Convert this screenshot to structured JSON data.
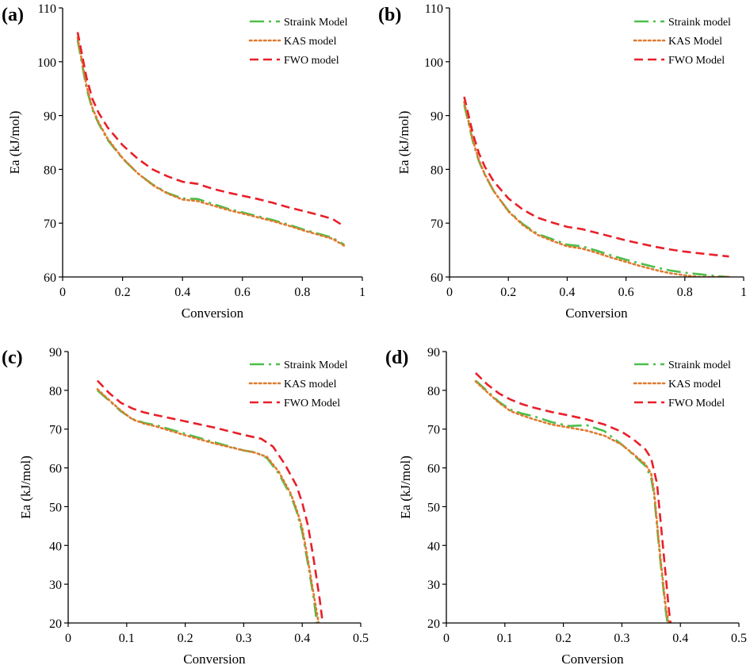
{
  "colors": {
    "strainks": "#4bbf4b",
    "kas": "#e07a2e",
    "fwo": "#e8202a",
    "axis": "#000000"
  },
  "chart_data": [
    {
      "panel_label": "(a)",
      "type": "line",
      "xlabel": "Conversion",
      "ylabel": "Ea (kJ/mol)",
      "xlim": [
        0,
        1
      ],
      "ylim": [
        60,
        110
      ],
      "xticks": [
        0,
        0.2,
        0.4,
        0.6,
        0.8,
        1
      ],
      "xtick_labels": [
        "0",
        "0.2",
        "0.4",
        "0.6",
        "0.8",
        "1"
      ],
      "yticks": [
        60,
        70,
        80,
        90,
        100,
        110
      ],
      "ytick_labels": [
        "60",
        "70",
        "80",
        "90",
        "100",
        "110"
      ],
      "legend_position": "top-right",
      "series": [
        {
          "name": "Straink Model",
          "style": "dashdot",
          "color_key": "strainks",
          "x": [
            0.05,
            0.08,
            0.1,
            0.12,
            0.15,
            0.2,
            0.25,
            0.3,
            0.35,
            0.4,
            0.45,
            0.5,
            0.55,
            0.6,
            0.65,
            0.7,
            0.75,
            0.8,
            0.85,
            0.9,
            0.94
          ],
          "y": [
            104,
            95,
            91,
            88.5,
            85.5,
            82,
            79.3,
            77.2,
            75.6,
            74.6,
            74.5,
            73.6,
            72.7,
            72,
            71.3,
            70.6,
            69.8,
            68.9,
            68.1,
            67.3,
            66
          ]
        },
        {
          "name": "KAS model",
          "style": "dotted",
          "color_key": "kas",
          "x": [
            0.05,
            0.08,
            0.1,
            0.12,
            0.15,
            0.2,
            0.25,
            0.3,
            0.35,
            0.4,
            0.45,
            0.5,
            0.55,
            0.6,
            0.65,
            0.7,
            0.75,
            0.8,
            0.85,
            0.9,
            0.94
          ],
          "y": [
            104.5,
            95.5,
            91.3,
            88.7,
            85.7,
            82.1,
            79.3,
            77.1,
            75.5,
            74.4,
            74.1,
            73.3,
            72.5,
            71.8,
            71.1,
            70.4,
            69.6,
            68.7,
            67.9,
            67.1,
            65.8
          ]
        },
        {
          "name": "FWO model",
          "style": "dashed",
          "color_key": "fwo",
          "x": [
            0.05,
            0.08,
            0.1,
            0.12,
            0.15,
            0.2,
            0.25,
            0.3,
            0.35,
            0.4,
            0.45,
            0.5,
            0.55,
            0.6,
            0.65,
            0.7,
            0.75,
            0.8,
            0.85,
            0.9,
            0.94
          ],
          "y": [
            105.5,
            97,
            93,
            90.5,
            87.8,
            84.5,
            82,
            80,
            78.7,
            77.7,
            77.3,
            76.4,
            75.7,
            75.1,
            74.5,
            73.8,
            73,
            72.3,
            71.6,
            70.8,
            69.4
          ]
        }
      ]
    },
    {
      "panel_label": "(b)",
      "type": "line",
      "xlabel": "Conversion",
      "ylabel": "Ea (kJ/mol)",
      "xlim": [
        0,
        1
      ],
      "ylim": [
        60,
        110
      ],
      "xticks": [
        0,
        0.2,
        0.4,
        0.6,
        0.8,
        1
      ],
      "xtick_labels": [
        "0",
        "0.2",
        "0.4",
        "0.6",
        "0.8",
        "1"
      ],
      "yticks": [
        60,
        70,
        80,
        90,
        100,
        110
      ],
      "ytick_labels": [
        "60",
        "70",
        "80",
        "90",
        "100",
        "110"
      ],
      "legend_position": "top-right",
      "series": [
        {
          "name": "Straink model",
          "style": "dashdot",
          "color_key": "strainks",
          "x": [
            0.05,
            0.08,
            0.1,
            0.12,
            0.15,
            0.2,
            0.25,
            0.3,
            0.35,
            0.4,
            0.45,
            0.5,
            0.55,
            0.6,
            0.65,
            0.7,
            0.75,
            0.8,
            0.85,
            0.9,
            0.95
          ],
          "y": [
            92,
            85,
            81.5,
            79,
            76,
            72.3,
            69.8,
            68,
            67,
            66,
            65.7,
            64.9,
            64,
            63.2,
            62.5,
            61.8,
            61.2,
            60.8,
            60.5,
            60.2,
            60
          ]
        },
        {
          "name": "KAS Model",
          "style": "dotted",
          "color_key": "kas",
          "x": [
            0.05,
            0.08,
            0.1,
            0.12,
            0.15,
            0.2,
            0.25,
            0.3,
            0.35,
            0.4,
            0.45,
            0.5,
            0.55,
            0.6,
            0.65,
            0.7,
            0.75,
            0.8,
            0.85,
            0.9,
            0.95
          ],
          "y": [
            92.5,
            85.3,
            81.7,
            79.1,
            76,
            72.2,
            69.6,
            67.8,
            66.7,
            65.7,
            65.3,
            64.5,
            63.6,
            62.8,
            62,
            61.3,
            60.7,
            60.3,
            60,
            60,
            60
          ]
        },
        {
          "name": "FWO Model",
          "style": "dashed",
          "color_key": "fwo",
          "x": [
            0.05,
            0.08,
            0.1,
            0.12,
            0.15,
            0.2,
            0.25,
            0.3,
            0.35,
            0.4,
            0.45,
            0.5,
            0.55,
            0.6,
            0.65,
            0.7,
            0.75,
            0.8,
            0.85,
            0.9,
            0.95
          ],
          "y": [
            93.5,
            86.5,
            83,
            80.5,
            77.8,
            74.6,
            72.5,
            71,
            70.1,
            69.3,
            68.9,
            68.2,
            67.5,
            66.8,
            66.2,
            65.6,
            65.1,
            64.7,
            64.4,
            64.1,
            63.8
          ]
        }
      ]
    },
    {
      "panel_label": "(c)",
      "type": "line",
      "xlabel": "Conversion",
      "ylabel": "Ea (kJ/mol)",
      "xlim": [
        0,
        0.5
      ],
      "ylim": [
        20,
        90
      ],
      "xticks": [
        0,
        0.1,
        0.2,
        0.3,
        0.4,
        0.5
      ],
      "xtick_labels": [
        "0",
        "0.1",
        "0.2",
        "0.3",
        "0.4",
        "0.5"
      ],
      "yticks": [
        20,
        30,
        40,
        50,
        60,
        70,
        80,
        90
      ],
      "ytick_labels": [
        "20",
        "30",
        "40",
        "50",
        "60",
        "70",
        "80",
        "90"
      ],
      "legend_position": "top-right",
      "series": [
        {
          "name": "Straink Model",
          "style": "dashdot",
          "color_key": "strainks",
          "x": [
            0.05,
            0.07,
            0.09,
            0.11,
            0.13,
            0.15,
            0.2,
            0.25,
            0.3,
            0.32,
            0.34,
            0.36,
            0.38,
            0.39,
            0.4,
            0.41,
            0.42,
            0.425
          ],
          "y": [
            80,
            77.3,
            74.6,
            72.6,
            71.6,
            71,
            68.8,
            66.6,
            64.5,
            64,
            62.5,
            58.5,
            53,
            49,
            43.5,
            35,
            26,
            20
          ]
        },
        {
          "name": "KAS model",
          "style": "dotted",
          "color_key": "kas",
          "x": [
            0.05,
            0.07,
            0.09,
            0.11,
            0.13,
            0.15,
            0.2,
            0.25,
            0.3,
            0.32,
            0.34,
            0.36,
            0.38,
            0.39,
            0.4,
            0.41,
            0.42,
            0.428
          ],
          "y": [
            80.3,
            77.5,
            74.8,
            72.5,
            71.4,
            70.7,
            68.4,
            66.3,
            64.5,
            63.9,
            62.8,
            59,
            53.5,
            49.5,
            44.5,
            36,
            27,
            20
          ]
        },
        {
          "name": "FWO Model",
          "style": "dashed",
          "color_key": "fwo",
          "x": [
            0.05,
            0.07,
            0.09,
            0.11,
            0.13,
            0.15,
            0.2,
            0.25,
            0.3,
            0.33,
            0.35,
            0.37,
            0.39,
            0.4,
            0.41,
            0.42,
            0.43,
            0.435
          ],
          "y": [
            82.5,
            79.3,
            76.8,
            75.3,
            74.3,
            73.6,
            72,
            70.4,
            68.5,
            67.5,
            65.5,
            61,
            55.5,
            51,
            45,
            36,
            26,
            20
          ]
        }
      ]
    },
    {
      "panel_label": "(d)",
      "type": "line",
      "xlabel": "Conversion",
      "ylabel": "Ea (kJ/mol)",
      "xlim": [
        0,
        0.5
      ],
      "ylim": [
        20,
        90
      ],
      "xticks": [
        0,
        0.1,
        0.2,
        0.3,
        0.4,
        0.5
      ],
      "xtick_labels": [
        "0",
        "0.1",
        "0.2",
        "0.3",
        "0.4",
        "0.5"
      ],
      "yticks": [
        20,
        30,
        40,
        50,
        60,
        70,
        80,
        90
      ],
      "ytick_labels": [
        "20",
        "30",
        "40",
        "50",
        "60",
        "70",
        "80",
        "90"
      ],
      "legend_position": "top-right",
      "series": [
        {
          "name": "Straink model",
          "style": "dashdot",
          "color_key": "strainks",
          "x": [
            0.05,
            0.07,
            0.09,
            0.11,
            0.13,
            0.15,
            0.18,
            0.21,
            0.24,
            0.27,
            0.3,
            0.32,
            0.34,
            0.35,
            0.355,
            0.36,
            0.365,
            0.37,
            0.375,
            0.378
          ],
          "y": [
            82.5,
            79.8,
            77,
            75,
            74,
            73.3,
            71.8,
            70.8,
            71,
            69.5,
            66,
            63.3,
            60.5,
            57.5,
            53,
            45,
            37,
            30,
            23,
            20
          ]
        },
        {
          "name": "KAS model",
          "style": "dotted",
          "color_key": "kas",
          "x": [
            0.05,
            0.07,
            0.09,
            0.11,
            0.13,
            0.15,
            0.18,
            0.21,
            0.24,
            0.27,
            0.3,
            0.32,
            0.34,
            0.35,
            0.355,
            0.36,
            0.365,
            0.37,
            0.375,
            0.38
          ],
          "y": [
            82.3,
            79.5,
            76.8,
            74.6,
            73.5,
            72.5,
            71.2,
            70.4,
            69.6,
            68.3,
            66,
            63.5,
            61,
            58.5,
            54,
            46,
            38,
            31,
            24,
            20
          ]
        },
        {
          "name": "FWO Model",
          "style": "dashed",
          "color_key": "fwo",
          "x": [
            0.05,
            0.07,
            0.09,
            0.11,
            0.13,
            0.15,
            0.18,
            0.21,
            0.24,
            0.27,
            0.3,
            0.32,
            0.34,
            0.35,
            0.36,
            0.365,
            0.37,
            0.375,
            0.38,
            0.383
          ],
          "y": [
            84.5,
            81.5,
            79.2,
            77.6,
            76.4,
            75.5,
            74.4,
            73.5,
            72.5,
            71.2,
            69.3,
            67.3,
            64.8,
            62.5,
            56,
            48,
            40,
            32,
            24,
            20
          ]
        }
      ]
    }
  ]
}
